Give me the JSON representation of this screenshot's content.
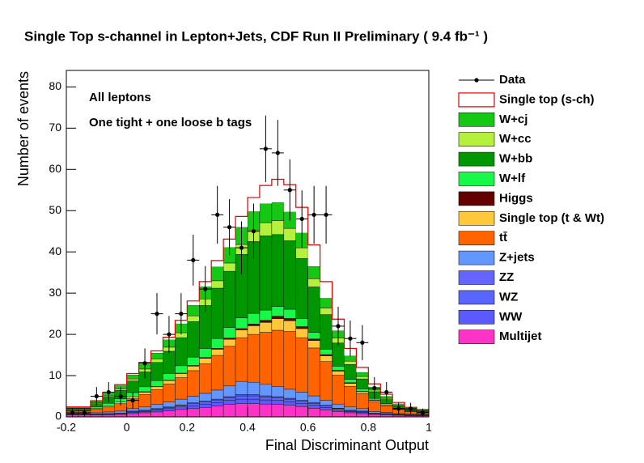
{
  "chart_data": {
    "type": "histogram",
    "title": "Single Top s-channel in Lepton+Jets, CDF Run II Preliminary ( 9.4 fb⁻¹ )",
    "xlabel": "Final Discriminant Output",
    "ylabel": "Number of events",
    "annotations": [
      "All leptons",
      "One tight + one loose b tags"
    ],
    "bins": [
      -0.2,
      -0.16,
      -0.12,
      -0.08,
      -0.04,
      0,
      0.04,
      0.08,
      0.12,
      0.16,
      0.2,
      0.24,
      0.28,
      0.32,
      0.36,
      0.4,
      0.44,
      0.48,
      0.52,
      0.56,
      0.6,
      0.64,
      0.68,
      0.72,
      0.76,
      0.8,
      0.84,
      0.88,
      0.92,
      0.96,
      1
    ],
    "xlim": [
      -0.2,
      1
    ],
    "xticks": [
      -0.2,
      0,
      0.2,
      0.4,
      0.6,
      0.8,
      1
    ],
    "ylim": [
      0,
      84
    ],
    "yticks": [
      0,
      10,
      20,
      30,
      40,
      50,
      60,
      70,
      80
    ],
    "data": {
      "name": "Data",
      "color": "#000000",
      "values": [
        1,
        1,
        5,
        6,
        5,
        4,
        13,
        25,
        20,
        25,
        38,
        31,
        49,
        46,
        41,
        45,
        65,
        64,
        55,
        48,
        49,
        49,
        22,
        19,
        18,
        7,
        6,
        2,
        2,
        1
      ]
    },
    "series": [
      {
        "name": "Single top (s-ch)",
        "color": "#e00000",
        "values": [
          0.1,
          0.1,
          0.1,
          0.2,
          0.2,
          0.3,
          0.4,
          0.5,
          0.6,
          0.8,
          1.0,
          1.2,
          1.5,
          2.0,
          2.6,
          3.4,
          4.4,
          5.6,
          6.6,
          6.2,
          5.2,
          4.0,
          2.8,
          1.8,
          1.2,
          0.8,
          0.5,
          0.3,
          0.2,
          0.1
        ]
      },
      {
        "name": "W+cj",
        "color": "#14c814",
        "values": [
          0.2,
          0.2,
          0.4,
          0.6,
          0.8,
          1.0,
          1.2,
          1.5,
          1.8,
          2.2,
          2.6,
          3.0,
          3.4,
          3.8,
          4.2,
          4.5,
          4.6,
          4.4,
          4.0,
          3.6,
          3.0,
          2.4,
          1.8,
          1.3,
          1.0,
          0.7,
          0.5,
          0.3,
          0.2,
          0.2
        ]
      },
      {
        "name": "W+cc",
        "color": "#b4f03c",
        "values": [
          0.1,
          0.1,
          0.2,
          0.3,
          0.4,
          0.5,
          0.7,
          0.8,
          1.0,
          1.2,
          1.4,
          1.6,
          1.8,
          2.0,
          2.4,
          2.8,
          3.2,
          3.4,
          3.0,
          2.6,
          2.0,
          1.6,
          1.2,
          0.8,
          0.6,
          0.4,
          0.3,
          0.2,
          0.1,
          0.1
        ]
      },
      {
        "name": "W+bb",
        "color": "#009600",
        "values": [
          0.3,
          0.3,
          0.8,
          1.5,
          2.0,
          2.8,
          3.6,
          4.4,
          5.4,
          6.8,
          8.6,
          10.4,
          12.2,
          13.6,
          15.4,
          17.4,
          18.0,
          17.4,
          16.6,
          14.6,
          11.0,
          8.4,
          5.6,
          3.6,
          2.4,
          1.6,
          1.0,
          0.6,
          0.3,
          0.2
        ]
      },
      {
        "name": "W+lf",
        "color": "#18f848",
        "values": [
          0.2,
          0.2,
          0.4,
          0.6,
          0.8,
          1.0,
          1.2,
          1.4,
          1.6,
          1.8,
          2.0,
          2.2,
          2.4,
          2.6,
          2.6,
          2.6,
          2.5,
          2.4,
          2.2,
          1.9,
          1.6,
          1.3,
          1.0,
          0.8,
          0.6,
          0.4,
          0.3,
          0.2,
          0.1,
          0.1
        ]
      },
      {
        "name": "Higgs",
        "color": "#640000",
        "values": [
          0,
          0,
          0,
          0,
          0,
          0,
          0.1,
          0.1,
          0.1,
          0.1,
          0.2,
          0.2,
          0.2,
          0.3,
          0.3,
          0.4,
          0.5,
          0.6,
          0.6,
          0.5,
          0.4,
          0.3,
          0.2,
          0.2,
          0.1,
          0.1,
          0,
          0,
          0,
          0
        ]
      },
      {
        "name": "Single top (t & Wt)",
        "color": "#ffc83c",
        "values": [
          0.1,
          0.1,
          0.2,
          0.3,
          0.4,
          0.5,
          0.6,
          0.7,
          0.8,
          1.0,
          1.1,
          1.3,
          1.5,
          1.7,
          1.9,
          2.1,
          2.4,
          2.8,
          2.6,
          2.2,
          1.8,
          1.4,
          1.0,
          0.7,
          0.5,
          0.3,
          0.2,
          0.1,
          0.1,
          0.1
        ]
      },
      {
        "name": "tt̄",
        "color": "#ff6400",
        "values": [
          0.5,
          0.5,
          0.8,
          1.2,
          1.8,
          2.4,
          3.0,
          3.6,
          4.4,
          5.2,
          6.2,
          7.2,
          8.4,
          9.6,
          10.6,
          11.6,
          12.6,
          13.6,
          14.0,
          13.2,
          11.6,
          9.4,
          7.0,
          5.0,
          3.6,
          2.4,
          1.6,
          1.0,
          0.6,
          0.4
        ]
      },
      {
        "name": "Z+jets",
        "color": "#6496ff",
        "values": [
          0.2,
          0.2,
          0.3,
          0.4,
          0.5,
          0.6,
          0.8,
          1.0,
          1.2,
          1.4,
          1.6,
          1.9,
          2.2,
          2.6,
          3.2,
          3.0,
          2.8,
          2.5,
          2.2,
          2.0,
          1.6,
          1.2,
          1.0,
          0.8,
          0.6,
          0.4,
          0.3,
          0.2,
          0.2,
          0.1
        ]
      },
      {
        "name": "ZZ",
        "color": "#6464ff",
        "values": [
          0,
          0,
          0,
          0,
          0,
          0.1,
          0.1,
          0.1,
          0.1,
          0.1,
          0.2,
          0.2,
          0.2,
          0.2,
          0.3,
          0.3,
          0.3,
          0.2,
          0.2,
          0.2,
          0.2,
          0.1,
          0.1,
          0.1,
          0.1,
          0,
          0,
          0,
          0,
          0
        ]
      },
      {
        "name": "WZ",
        "color": "#5a64ff",
        "values": [
          0.1,
          0.1,
          0.1,
          0.1,
          0.1,
          0.2,
          0.2,
          0.3,
          0.3,
          0.4,
          0.5,
          0.5,
          0.6,
          0.7,
          0.8,
          0.8,
          0.7,
          0.7,
          0.6,
          0.5,
          0.5,
          0.4,
          0.3,
          0.2,
          0.2,
          0.1,
          0.1,
          0.1,
          0.1,
          0.1
        ]
      },
      {
        "name": "WW",
        "color": "#5a5aff",
        "values": [
          0.1,
          0.1,
          0.1,
          0.2,
          0.2,
          0.3,
          0.3,
          0.4,
          0.5,
          0.6,
          0.7,
          0.8,
          0.9,
          1.0,
          1.1,
          1.1,
          1.0,
          1.0,
          0.9,
          0.8,
          0.7,
          0.6,
          0.4,
          0.3,
          0.3,
          0.2,
          0.2,
          0.1,
          0.1,
          0.1
        ]
      },
      {
        "name": "Multijet",
        "color": "#ff32c8",
        "values": [
          0.5,
          0.5,
          0.5,
          0.5,
          0.6,
          0.8,
          1.0,
          1.2,
          1.5,
          1.8,
          2.0,
          2.3,
          2.6,
          3.0,
          3.2,
          3.2,
          3.1,
          3.0,
          2.8,
          2.5,
          2.1,
          1.7,
          1.3,
          1.0,
          0.8,
          0.6,
          0.5,
          0.4,
          0.3,
          0.3
        ]
      }
    ]
  }
}
